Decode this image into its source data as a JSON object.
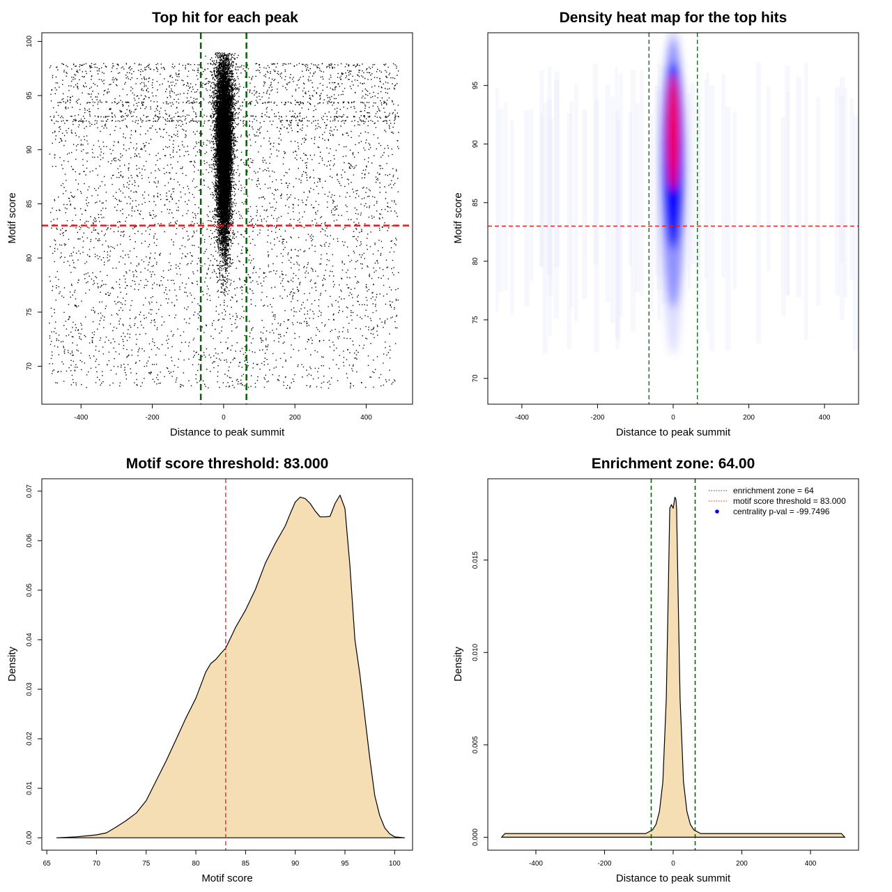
{
  "chart_data": [
    {
      "type": "scatter",
      "title": "Top hit for each peak",
      "xlabel": "Distance to peak summit",
      "ylabel": "Motif score",
      "xlim": [
        -510,
        530
      ],
      "ylim": [
        66.5,
        100.8
      ],
      "xticks": [
        -400,
        -200,
        0,
        200,
        400
      ],
      "yticks": [
        70,
        75,
        80,
        85,
        90,
        95,
        100
      ],
      "point_color": "#000000",
      "enrichment_zone": [
        -64,
        64
      ],
      "zone_line_color": "#006400",
      "score_threshold": 83,
      "threshold_line_color": "#e31a1c",
      "background": {
        "x_range": [
          -490,
          490
        ],
        "y_range": [
          68,
          98
        ],
        "n_points": 4500
      },
      "central_cluster": {
        "x_center": 0,
        "x_sd": 10,
        "y_range": [
          73,
          99
        ],
        "n_points": 14000
      },
      "banded_rows": [
        94.4,
        93.1,
        92.7
      ]
    },
    {
      "type": "heatmap",
      "title": "Density heat map for the top hits",
      "xlabel": "Distance to peak summit",
      "ylabel": "Motif score",
      "xlim": [
        -490,
        490
      ],
      "ylim": [
        67.8,
        99.5
      ],
      "xticks": [
        -400,
        -200,
        0,
        200,
        400
      ],
      "yticks": [
        70,
        75,
        80,
        85,
        90,
        95
      ],
      "enrichment_zone": [
        -64,
        64
      ],
      "zone_line_color": "#006400",
      "score_threshold": 83,
      "threshold_line_color": "#e31a1c",
      "color_scale": [
        "#ffffff",
        "#0000ff",
        "#ff0000"
      ],
      "hotspot": {
        "x": 0,
        "y_range": [
          83,
          96
        ],
        "peak_y": 91
      }
    },
    {
      "type": "area",
      "title": "Motif score threshold: 83.000",
      "xlabel": "Motif score",
      "ylabel": "Density",
      "xlim": [
        64.5,
        101.8
      ],
      "ylim": [
        -0.0025,
        0.0725
      ],
      "xticks": [
        65,
        70,
        75,
        80,
        85,
        90,
        95,
        100
      ],
      "yticks": [
        0.0,
        0.01,
        0.02,
        0.03,
        0.04,
        0.05,
        0.06,
        0.07
      ],
      "ytick_labels": [
        "0.00",
        "0.01",
        "0.02",
        "0.03",
        "0.04",
        "0.05",
        "0.06",
        "0.07"
      ],
      "fill_color": "#f5deb3",
      "threshold": 83,
      "threshold_line_color": "#e31a1c",
      "x": [
        66,
        68,
        70,
        71,
        72,
        73,
        74,
        75,
        76,
        77,
        78,
        79,
        80,
        81,
        81.5,
        82,
        82.5,
        83,
        84,
        85,
        86,
        87,
        88,
        89,
        89.5,
        90,
        90.5,
        91,
        91.5,
        92,
        92.5,
        93,
        93.5,
        94,
        94.5,
        95,
        95.5,
        96,
        96.5,
        97,
        97.5,
        98,
        98.5,
        99,
        99.5,
        100,
        101
      ],
      "y": [
        0.0,
        0.0002,
        0.0006,
        0.001,
        0.0022,
        0.0035,
        0.005,
        0.0075,
        0.0115,
        0.0155,
        0.0198,
        0.0242,
        0.0282,
        0.0335,
        0.0352,
        0.036,
        0.0372,
        0.0383,
        0.0425,
        0.046,
        0.0502,
        0.0555,
        0.0595,
        0.063,
        0.0655,
        0.0678,
        0.0688,
        0.0685,
        0.0675,
        0.066,
        0.0648,
        0.0648,
        0.0649,
        0.0675,
        0.0692,
        0.0665,
        0.055,
        0.04,
        0.033,
        0.0245,
        0.016,
        0.0085,
        0.0045,
        0.002,
        0.0008,
        0.0002,
        0.0
      ]
    },
    {
      "type": "area",
      "title": "Enrichment zone: 64.00",
      "xlabel": "Distance to peak summit",
      "ylabel": "Density",
      "xlim": [
        -540,
        540
      ],
      "ylim": [
        -0.0007,
        0.0194
      ],
      "xticks": [
        -400,
        -200,
        0,
        200,
        400
      ],
      "yticks": [
        0.0,
        0.005,
        0.01,
        0.015
      ],
      "ytick_labels": [
        "0.000",
        "0.005",
        "0.010",
        "0.015"
      ],
      "fill_color": "#f5deb3",
      "enrichment_zone": [
        -64,
        64
      ],
      "zone_line_color": "#006400",
      "x": [
        -500,
        -490,
        -80,
        -60,
        -50,
        -40,
        -30,
        -20,
        -15,
        -10,
        -5,
        0,
        5,
        8,
        10,
        15,
        20,
        30,
        40,
        50,
        60,
        80,
        490,
        500
      ],
      "y": [
        0.0,
        0.0002,
        0.0002,
        0.0004,
        0.0007,
        0.0014,
        0.003,
        0.0075,
        0.0125,
        0.0178,
        0.018,
        0.0178,
        0.0184,
        0.0183,
        0.0178,
        0.0125,
        0.0075,
        0.003,
        0.0014,
        0.0007,
        0.0004,
        0.0002,
        0.0002,
        0.0
      ],
      "legend": {
        "placement": "top-right",
        "entries": [
          {
            "label": "enrichment zone = 64",
            "color": "#006400",
            "marker": "dotted-line"
          },
          {
            "label": "motif score threshold = 83.000",
            "color": "#e31a1c",
            "marker": "dotted-line"
          },
          {
            "label": "centrality p-val = -99.7496",
            "color": "#0000ff",
            "marker": "dot"
          }
        ]
      }
    }
  ]
}
